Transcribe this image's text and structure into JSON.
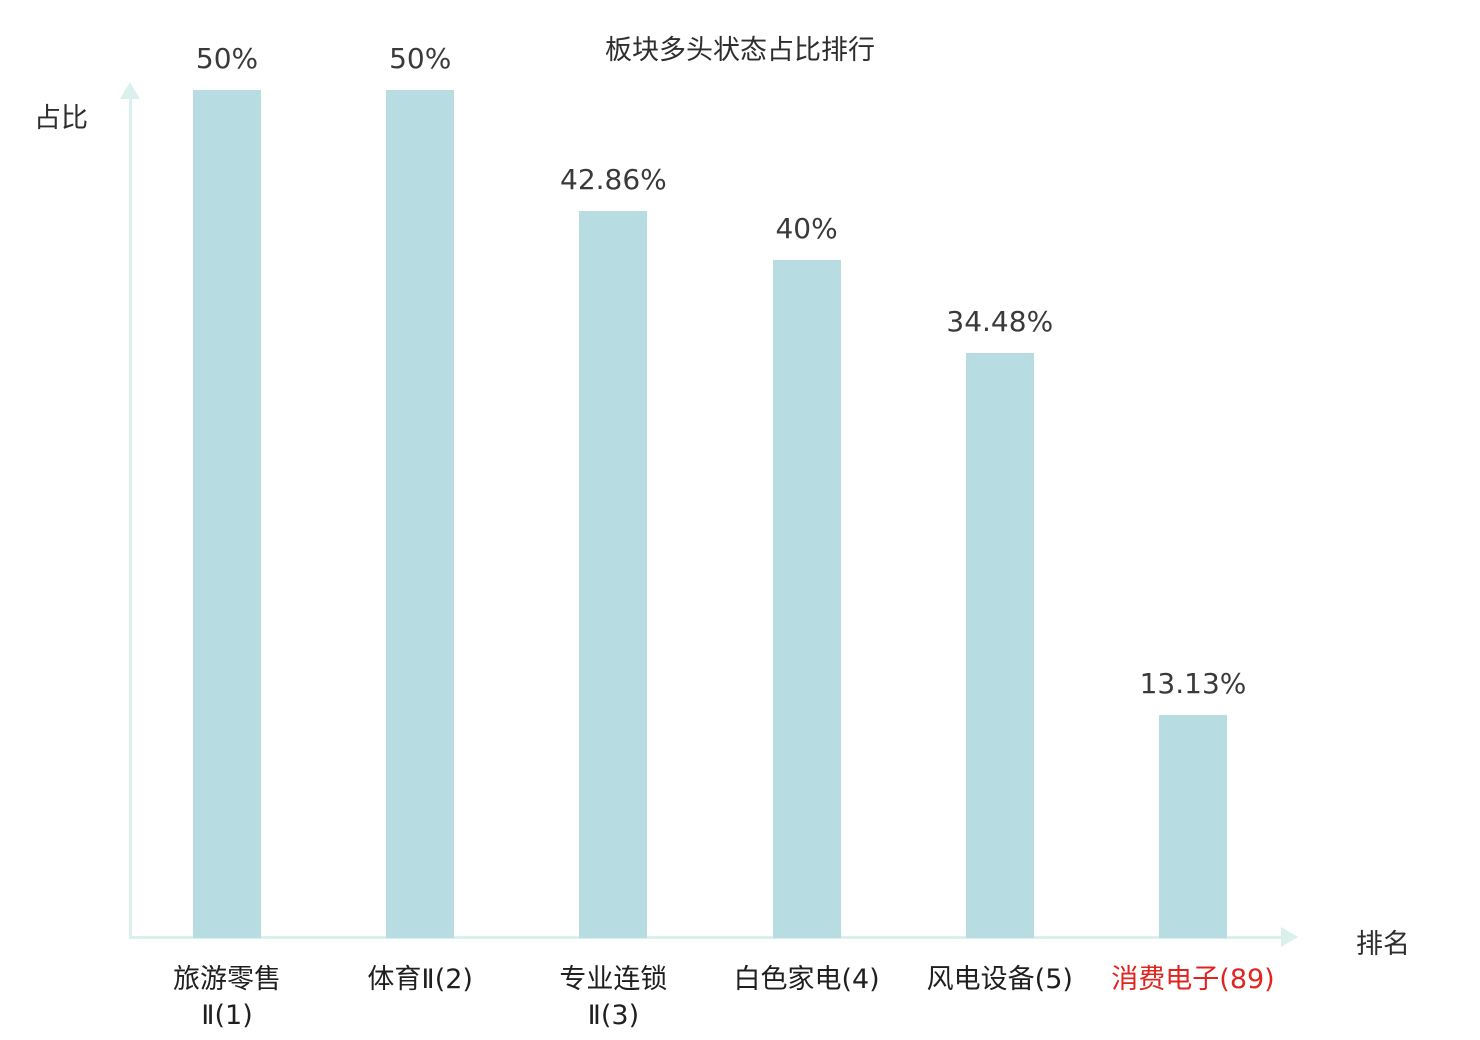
{
  "chart_data": {
    "type": "bar",
    "title": "板块多头状态占比排行",
    "xlabel": "排名",
    "ylabel": "占比",
    "ylim": [
      0,
      50
    ],
    "grid": false,
    "legend": "none",
    "bars": [
      {
        "category": "旅游零售\nⅡ(1)",
        "value": 50,
        "value_label": "50%",
        "highlight": false
      },
      {
        "category": "体育Ⅱ(2)",
        "value": 50,
        "value_label": "50%",
        "highlight": false
      },
      {
        "category": "专业连锁\nⅡ(3)",
        "value": 42.86,
        "value_label": "42.86%",
        "highlight": false
      },
      {
        "category": "白色家电(4)",
        "value": 40,
        "value_label": "40%",
        "highlight": false
      },
      {
        "category": "风电设备(5)",
        "value": 34.48,
        "value_label": "34.48%",
        "highlight": false
      },
      {
        "category": "消费电子(89)",
        "value": 13.13,
        "value_label": "13.13%",
        "highlight": true
      }
    ],
    "colors": {
      "bar_fill": "#b7dde2",
      "axis": "#daf0ed",
      "text": "#3a3a3a",
      "highlight_text": "#e02420",
      "background": "#ffffff"
    }
  }
}
